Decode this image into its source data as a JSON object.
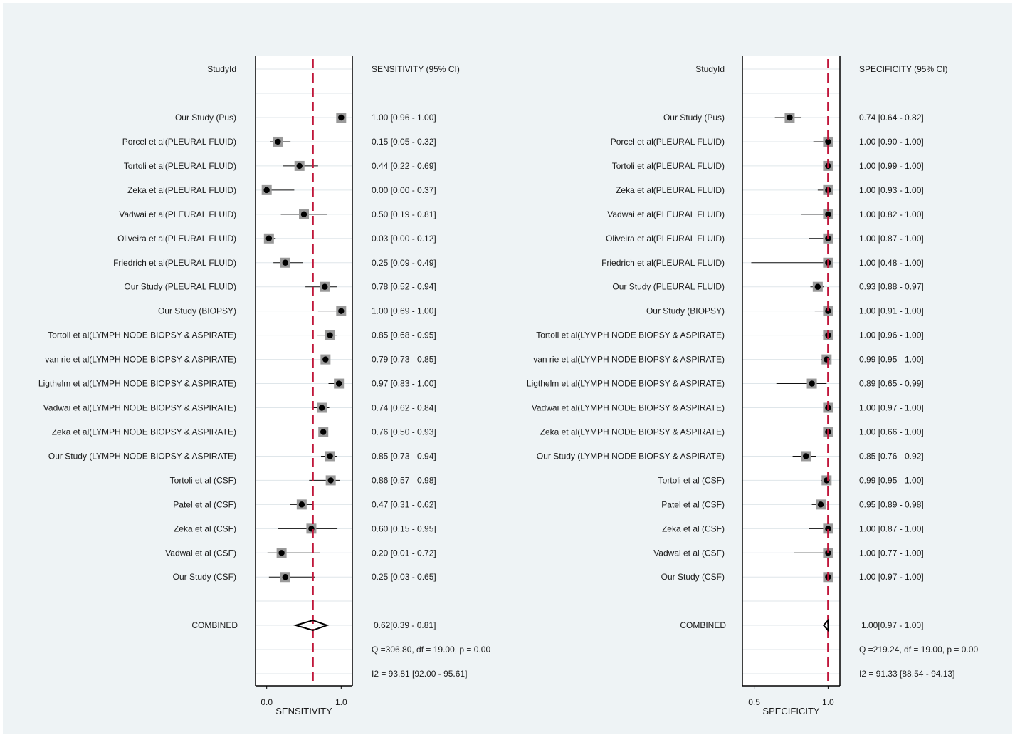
{
  "chart_data": [
    {
      "type": "forest",
      "id": "sensitivity",
      "study_header": "StudyId",
      "ci_header": "SENSITIVITY (95% CI)",
      "xlabel": "SENSITIVITY",
      "xlim": [
        -0.15,
        1.15
      ],
      "ticks": [
        {
          "value": 0.0,
          "label": "0.0"
        },
        {
          "value": 1.0,
          "label": "1.0"
        }
      ],
      "pooled_line": 0.62,
      "studies": [
        {
          "name": "Our Study (Pus)",
          "est": 1.0,
          "lo": 0.96,
          "hi": 1.0,
          "label": "1.00 [0.96 - 1.00]"
        },
        {
          "name": "Porcel et al(PLEURAL FLUID)",
          "est": 0.15,
          "lo": 0.05,
          "hi": 0.32,
          "label": "0.15 [0.05 - 0.32]"
        },
        {
          "name": "Tortoli et al(PLEURAL FLUID)",
          "est": 0.44,
          "lo": 0.22,
          "hi": 0.69,
          "label": "0.44 [0.22 - 0.69]"
        },
        {
          "name": "Zeka et al(PLEURAL FLUID)",
          "est": 0.0,
          "lo": 0.0,
          "hi": 0.37,
          "label": "0.00 [0.00 - 0.37]"
        },
        {
          "name": "Vadwai et al(PLEURAL FLUID)",
          "est": 0.5,
          "lo": 0.19,
          "hi": 0.81,
          "label": "0.50 [0.19 - 0.81]"
        },
        {
          "name": "Oliveira et al(PLEURAL FLUID)",
          "est": 0.03,
          "lo": 0.0,
          "hi": 0.12,
          "label": "0.03 [0.00 - 0.12]"
        },
        {
          "name": "Friedrich et al(PLEURAL FLUID)",
          "est": 0.25,
          "lo": 0.09,
          "hi": 0.49,
          "label": "0.25 [0.09 - 0.49]"
        },
        {
          "name": "Our Study (PLEURAL FLUID)",
          "est": 0.78,
          "lo": 0.52,
          "hi": 0.94,
          "label": "0.78 [0.52 - 0.94]"
        },
        {
          "name": "Our Study (BIOPSY)",
          "est": 1.0,
          "lo": 0.69,
          "hi": 1.0,
          "label": "1.00 [0.69 - 1.00]"
        },
        {
          "name": "Tortoli et al(LYMPH NODE BIOPSY & ASPIRATE)",
          "est": 0.85,
          "lo": 0.68,
          "hi": 0.95,
          "label": "0.85 [0.68 - 0.95]"
        },
        {
          "name": "van rie et al(LYMPH NODE BIOPSY & ASPIRATE)",
          "est": 0.79,
          "lo": 0.73,
          "hi": 0.85,
          "label": "0.79 [0.73 - 0.85]"
        },
        {
          "name": "Ligthelm et al(LYMPH NODE BIOPSY & ASPIRATE)",
          "est": 0.97,
          "lo": 0.83,
          "hi": 1.0,
          "label": "0.97 [0.83 - 1.00]"
        },
        {
          "name": "Vadwai et al(LYMPH NODE BIOPSY & ASPIRATE)",
          "est": 0.74,
          "lo": 0.62,
          "hi": 0.84,
          "label": "0.74 [0.62 - 0.84]"
        },
        {
          "name": "Zeka et al(LYMPH NODE BIOPSY & ASPIRATE)",
          "est": 0.76,
          "lo": 0.5,
          "hi": 0.93,
          "label": "0.76 [0.50 - 0.93]"
        },
        {
          "name": "Our Study (LYMPH NODE BIOPSY & ASPIRATE)",
          "est": 0.85,
          "lo": 0.73,
          "hi": 0.94,
          "label": "0.85 [0.73 - 0.94]"
        },
        {
          "name": "Tortoli et al (CSF)",
          "est": 0.86,
          "lo": 0.57,
          "hi": 0.98,
          "label": "0.86 [0.57 - 0.98]"
        },
        {
          "name": "Patel et al (CSF)",
          "est": 0.47,
          "lo": 0.31,
          "hi": 0.62,
          "label": "0.47 [0.31 - 0.62]"
        },
        {
          "name": "Zeka et al (CSF)",
          "est": 0.6,
          "lo": 0.15,
          "hi": 0.95,
          "label": "0.60 [0.15 - 0.95]"
        },
        {
          "name": "Vadwai et al (CSF)",
          "est": 0.2,
          "lo": 0.01,
          "hi": 0.72,
          "label": "0.20 [0.01 - 0.72]"
        },
        {
          "name": "Our Study (CSF)",
          "est": 0.25,
          "lo": 0.03,
          "hi": 0.65,
          "label": "0.25 [0.03 - 0.65]"
        }
      ],
      "combined": {
        "name": "COMBINED",
        "est": 0.62,
        "lo": 0.39,
        "hi": 0.81,
        "label": "0.62[0.39 - 0.81]"
      },
      "stats": [
        "Q =306.80, df = 19.00, p =  0.00",
        "I2 = 93.81 [92.00 - 95.61]"
      ]
    },
    {
      "type": "forest",
      "id": "specificity",
      "study_header": "StudyId",
      "ci_header": "SPECIFICITY (95% CI)",
      "xlabel": "SPECIFICITY",
      "xlim": [
        0.42,
        1.08
      ],
      "ticks": [
        {
          "value": 0.5,
          "label": "0.5"
        },
        {
          "value": 1.0,
          "label": "1.0"
        }
      ],
      "pooled_line": 1.0,
      "studies": [
        {
          "name": "Our Study (Pus)",
          "est": 0.74,
          "lo": 0.64,
          "hi": 0.82,
          "label": "0.74 [0.64 - 0.82]"
        },
        {
          "name": "Porcel et al(PLEURAL FLUID)",
          "est": 1.0,
          "lo": 0.9,
          "hi": 1.0,
          "label": "1.00 [0.90 - 1.00]"
        },
        {
          "name": "Tortoli et al(PLEURAL FLUID)",
          "est": 1.0,
          "lo": 0.99,
          "hi": 1.0,
          "label": "1.00 [0.99 - 1.00]"
        },
        {
          "name": "Zeka et al(PLEURAL FLUID)",
          "est": 1.0,
          "lo": 0.93,
          "hi": 1.0,
          "label": "1.00 [0.93 - 1.00]"
        },
        {
          "name": "Vadwai et al(PLEURAL FLUID)",
          "est": 1.0,
          "lo": 0.82,
          "hi": 1.0,
          "label": "1.00 [0.82 - 1.00]"
        },
        {
          "name": "Oliveira et al(PLEURAL FLUID)",
          "est": 1.0,
          "lo": 0.87,
          "hi": 1.0,
          "label": "1.00 [0.87 - 1.00]"
        },
        {
          "name": "Friedrich et al(PLEURAL FLUID)",
          "est": 1.0,
          "lo": 0.48,
          "hi": 1.0,
          "label": "1.00 [0.48 - 1.00]"
        },
        {
          "name": "Our Study (PLEURAL FLUID)",
          "est": 0.93,
          "lo": 0.88,
          "hi": 0.97,
          "label": "0.93 [0.88 - 0.97]"
        },
        {
          "name": "Our Study (BIOPSY)",
          "est": 1.0,
          "lo": 0.91,
          "hi": 1.0,
          "label": "1.00 [0.91 - 1.00]"
        },
        {
          "name": "Tortoli et al(LYMPH NODE BIOPSY & ASPIRATE)",
          "est": 1.0,
          "lo": 0.96,
          "hi": 1.0,
          "label": "1.00 [0.96 - 1.00]"
        },
        {
          "name": "van rie et al(LYMPH NODE BIOPSY & ASPIRATE)",
          "est": 0.99,
          "lo": 0.95,
          "hi": 1.0,
          "label": "0.99 [0.95 - 1.00]"
        },
        {
          "name": "Ligthelm et al(LYMPH NODE BIOPSY & ASPIRATE)",
          "est": 0.89,
          "lo": 0.65,
          "hi": 0.99,
          "label": "0.89 [0.65 - 0.99]"
        },
        {
          "name": "Vadwai et al(LYMPH NODE BIOPSY & ASPIRATE)",
          "est": 1.0,
          "lo": 0.97,
          "hi": 1.0,
          "label": "1.00 [0.97 - 1.00]"
        },
        {
          "name": "Zeka et al(LYMPH NODE BIOPSY & ASPIRATE)",
          "est": 1.0,
          "lo": 0.66,
          "hi": 1.0,
          "label": "1.00 [0.66 - 1.00]"
        },
        {
          "name": "Our Study (LYMPH NODE BIOPSY & ASPIRATE)",
          "est": 0.85,
          "lo": 0.76,
          "hi": 0.92,
          "label": "0.85 [0.76 - 0.92]"
        },
        {
          "name": "Tortoli et al (CSF)",
          "est": 0.99,
          "lo": 0.95,
          "hi": 1.0,
          "label": "0.99 [0.95 - 1.00]"
        },
        {
          "name": "Patel et al (CSF)",
          "est": 0.95,
          "lo": 0.89,
          "hi": 0.98,
          "label": "0.95 [0.89 - 0.98]"
        },
        {
          "name": "Zeka et al (CSF)",
          "est": 1.0,
          "lo": 0.87,
          "hi": 1.0,
          "label": "1.00 [0.87 - 1.00]"
        },
        {
          "name": "Vadwai et al (CSF)",
          "est": 1.0,
          "lo": 0.77,
          "hi": 1.0,
          "label": "1.00 [0.77 - 1.00]"
        },
        {
          "name": "Our Study (CSF)",
          "est": 1.0,
          "lo": 0.97,
          "hi": 1.0,
          "label": "1.00 [0.97 - 1.00]"
        }
      ],
      "combined": {
        "name": "COMBINED",
        "est": 1.0,
        "lo": 0.97,
        "hi": 1.0,
        "label": "1.00[0.97 - 1.00]"
      },
      "stats": [
        "Q =219.24, df = 19.00, p =  0.00",
        "I2 = 91.33 [88.54 - 94.13]"
      ]
    }
  ],
  "colors": {
    "background": "#eef3f5",
    "plot_region": "#ffffff",
    "row_rule": "#dfe6ea",
    "pooled_line": "#c0163a",
    "box": "#9a9a9a",
    "point": "#000000",
    "text": "#1a1a1a"
  }
}
